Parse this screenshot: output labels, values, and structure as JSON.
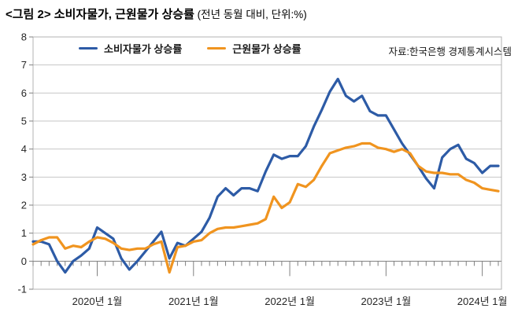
{
  "title": {
    "main": "<그림 2> 소비자물가, 근원물가 상승률",
    "sub": " (전년 동월 대비, 단위:%)"
  },
  "source": "자료:한국은행 경제통계시스템",
  "legend": {
    "items": [
      {
        "label": "소비자물가 상승률",
        "color": "#2d5ba6"
      },
      {
        "label": "근원물가 상승률",
        "color": "#f0941f"
      }
    ]
  },
  "chart_data": {
    "type": "line",
    "title": "소비자물가, 근원물가 상승률",
    "subtitle": "전년 동월 대비, 단위:%",
    "x_start_month": "2019-05",
    "x_end_month": "2024-03",
    "x_frequency": "monthly",
    "grid": true,
    "legend_position": "top-left",
    "y_axis": {
      "min": -1,
      "max": 8,
      "tick_values": [
        8,
        7,
        6,
        5,
        4,
        3,
        2,
        1,
        0,
        -1
      ],
      "tick_labels": [
        "8",
        "7",
        "6",
        "5",
        "4",
        "3",
        "2",
        "1",
        "0",
        "-1"
      ]
    },
    "x_axis": {
      "tick_labels": [
        "2020년 1월",
        "2021년 1월",
        "2022년 1월",
        "2023년 1월",
        "2024년 1월"
      ],
      "tick_month_indices": [
        8,
        20,
        32,
        44,
        56
      ]
    },
    "series": [
      {
        "name": "소비자물가 상승률",
        "color": "#2d5ba6",
        "values": [
          0.7,
          0.7,
          0.6,
          0.0,
          -0.4,
          0.0,
          0.2,
          0.45,
          1.2,
          1.0,
          0.8,
          0.1,
          -0.3,
          0.0,
          0.35,
          0.7,
          1.05,
          0.1,
          0.65,
          0.55,
          0.8,
          1.05,
          1.55,
          2.3,
          2.6,
          2.35,
          2.6,
          2.6,
          2.5,
          3.2,
          3.8,
          3.65,
          3.75,
          3.75,
          4.1,
          4.8,
          5.4,
          6.05,
          6.5,
          5.9,
          5.7,
          5.9,
          5.35,
          5.2,
          5.2,
          4.7,
          4.2,
          3.8,
          3.4,
          2.95,
          2.6,
          3.7,
          4.0,
          4.15,
          3.65,
          3.5,
          3.15,
          3.4,
          3.4
        ]
      },
      {
        "name": "근원물가 상승률",
        "color": "#f0941f",
        "values": [
          0.6,
          0.75,
          0.85,
          0.85,
          0.45,
          0.55,
          0.5,
          0.7,
          0.85,
          0.8,
          0.65,
          0.45,
          0.4,
          0.45,
          0.45,
          0.6,
          0.7,
          -0.4,
          0.5,
          0.55,
          0.7,
          0.75,
          1.0,
          1.15,
          1.2,
          1.2,
          1.25,
          1.3,
          1.35,
          1.5,
          2.3,
          1.9,
          2.1,
          2.75,
          2.65,
          2.9,
          3.4,
          3.85,
          3.95,
          4.05,
          4.1,
          4.2,
          4.2,
          4.05,
          4.0,
          3.9,
          4.0,
          3.85,
          3.4,
          3.2,
          3.15,
          3.15,
          3.1,
          3.1,
          2.9,
          2.8,
          2.6,
          2.55,
          2.5
        ]
      }
    ],
    "style_colors": {
      "gridline": "#c6c6c6",
      "plot_border": "#b3b3b3",
      "axis": "#808080",
      "tick_label": "#262626"
    }
  }
}
